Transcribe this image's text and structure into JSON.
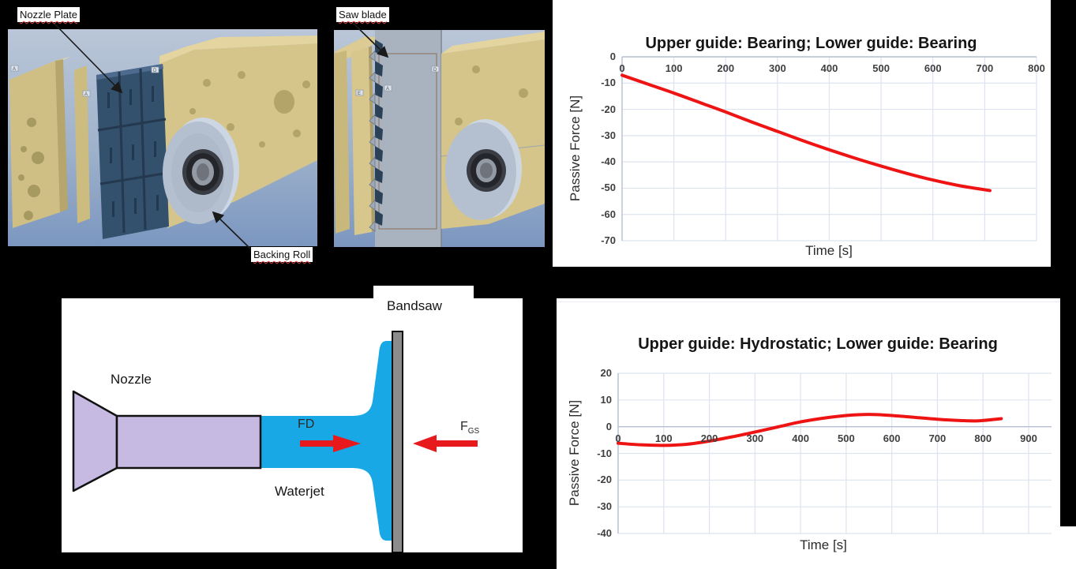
{
  "cad_section": {
    "labels": [
      {
        "id": "nozzle-plate",
        "text": "Nozzle Plate"
      },
      {
        "id": "saw-blade",
        "text": "Saw blade"
      },
      {
        "id": "backing-roll",
        "text": "Backing Roll"
      }
    ]
  },
  "diagram": {
    "bandsaw": "Bandsaw",
    "nozzle": "Nozzle",
    "waterjet": "Waterjet",
    "fd_label": "FD",
    "fgs_base": "F",
    "fgs_sub": "GS"
  },
  "chart_data": [
    {
      "type": "line",
      "title": "Upper guide: Bearing; Lower guide: Bearing",
      "xlabel": "Time [s]",
      "ylabel": "Passive Force [N]",
      "xlim": [
        0,
        800
      ],
      "ylim": [
        -70,
        0
      ],
      "xticks": [
        0,
        100,
        200,
        300,
        400,
        500,
        600,
        700,
        800
      ],
      "yticks": [
        0,
        -10,
        -20,
        -30,
        -40,
        -50,
        -60,
        -70
      ],
      "grid": true,
      "legend_position": "none",
      "series": [
        {
          "name": "Passive force",
          "color": "#ee1414",
          "points": [
            [
              0,
              -7
            ],
            [
              50,
              -10.4
            ],
            [
              100,
              -13.8
            ],
            [
              150,
              -17.4
            ],
            [
              200,
              -21
            ],
            [
              250,
              -24.8
            ],
            [
              300,
              -28.4
            ],
            [
              350,
              -32
            ],
            [
              400,
              -35.4
            ],
            [
              450,
              -38.6
            ],
            [
              500,
              -41.6
            ],
            [
              550,
              -44.4
            ],
            [
              600,
              -46.9
            ],
            [
              650,
              -49
            ],
            [
              700,
              -50.6
            ],
            [
              710,
              -50.9
            ]
          ]
        }
      ]
    },
    {
      "type": "line",
      "title": "Upper guide: Hydrostatic; Lower guide: Bearing",
      "xlabel": "Time [s]",
      "ylabel": "Passive Force [N]",
      "xlim": [
        0,
        900
      ],
      "ylim": [
        -40,
        20
      ],
      "xticks": [
        0,
        100,
        200,
        300,
        400,
        500,
        600,
        700,
        800,
        900
      ],
      "yticks": [
        20,
        10,
        0,
        -10,
        -20,
        -30,
        -40
      ],
      "grid": true,
      "legend_position": "none",
      "series": [
        {
          "name": "Passive force",
          "color": "#ee1414",
          "points": [
            [
              0,
              -6.2
            ],
            [
              50,
              -6.8
            ],
            [
              100,
              -7
            ],
            [
              150,
              -6.6
            ],
            [
              200,
              -5.4
            ],
            [
              250,
              -3.8
            ],
            [
              300,
              -2
            ],
            [
              350,
              -0.1
            ],
            [
              400,
              1.8
            ],
            [
              450,
              3.2
            ],
            [
              500,
              4.2
            ],
            [
              550,
              4.6
            ],
            [
              600,
              4.2
            ],
            [
              650,
              3.5
            ],
            [
              700,
              2.8
            ],
            [
              750,
              2.3
            ],
            [
              790,
              2.2
            ],
            [
              840,
              3.0
            ]
          ]
        }
      ]
    }
  ],
  "colors": {
    "accent_red": "#ee1414",
    "grid": "#dde4ef",
    "axis": "#b7c0d2",
    "tick_text": "#3f3f3f",
    "title_text": "#151515",
    "water_blue": "#18a8e6",
    "nozzle_lavender": "#c6b9e2",
    "bandsaw_gray": "#8c8c8c",
    "cad_sky": "#b3c0d3",
    "cad_tan": "#d6c58a",
    "cad_plate": "#33506c",
    "underline_red": "#e14040"
  }
}
